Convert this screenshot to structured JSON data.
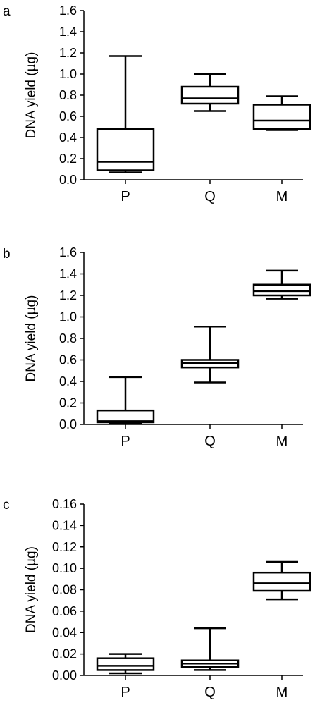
{
  "chart_data": [
    {
      "panel": "a",
      "type": "boxplot",
      "ylabel": "DNA yield (µg)",
      "ylim": [
        0,
        1.6
      ],
      "yticks": [
        "0.0",
        "0.2",
        "0.4",
        "0.6",
        "0.8",
        "1.0",
        "1.2",
        "1.4",
        "1.6"
      ],
      "categories": [
        "P",
        "Q",
        "M"
      ],
      "boxes": [
        {
          "min": 0.07,
          "q1": 0.09,
          "median": 0.17,
          "q3": 0.48,
          "max": 1.17
        },
        {
          "min": 0.65,
          "q1": 0.72,
          "median": 0.77,
          "q3": 0.88,
          "max": 1.0
        },
        {
          "min": 0.47,
          "q1": 0.48,
          "median": 0.56,
          "q3": 0.71,
          "max": 0.79
        }
      ]
    },
    {
      "panel": "b",
      "type": "boxplot",
      "ylabel": "DNA yield (µg)",
      "ylim": [
        0,
        1.6
      ],
      "yticks": [
        "0.0",
        "0.2",
        "0.4",
        "0.6",
        "0.8",
        "1.0",
        "1.2",
        "1.4",
        "1.6"
      ],
      "categories": [
        "P",
        "Q",
        "M"
      ],
      "boxes": [
        {
          "min": 0.01,
          "q1": 0.02,
          "median": 0.03,
          "q3": 0.13,
          "max": 0.44
        },
        {
          "min": 0.39,
          "q1": 0.53,
          "median": 0.57,
          "q3": 0.6,
          "max": 0.91
        },
        {
          "min": 1.17,
          "q1": 1.2,
          "median": 1.24,
          "q3": 1.3,
          "max": 1.43
        }
      ]
    },
    {
      "panel": "c",
      "type": "boxplot",
      "ylabel": "DNA yield (µg)",
      "ylim": [
        0,
        0.16
      ],
      "yticks": [
        "0.00",
        "0.02",
        "0.04",
        "0.06",
        "0.08",
        "0.10",
        "0.12",
        "0.14",
        "0.16"
      ],
      "categories": [
        "P",
        "Q",
        "M"
      ],
      "boxes": [
        {
          "min": 0.002,
          "q1": 0.005,
          "median": 0.009,
          "q3": 0.016,
          "max": 0.02
        },
        {
          "min": 0.005,
          "q1": 0.008,
          "median": 0.011,
          "q3": 0.014,
          "max": 0.044
        },
        {
          "min": 0.071,
          "q1": 0.079,
          "median": 0.086,
          "q3": 0.096,
          "max": 0.106
        }
      ]
    }
  ]
}
